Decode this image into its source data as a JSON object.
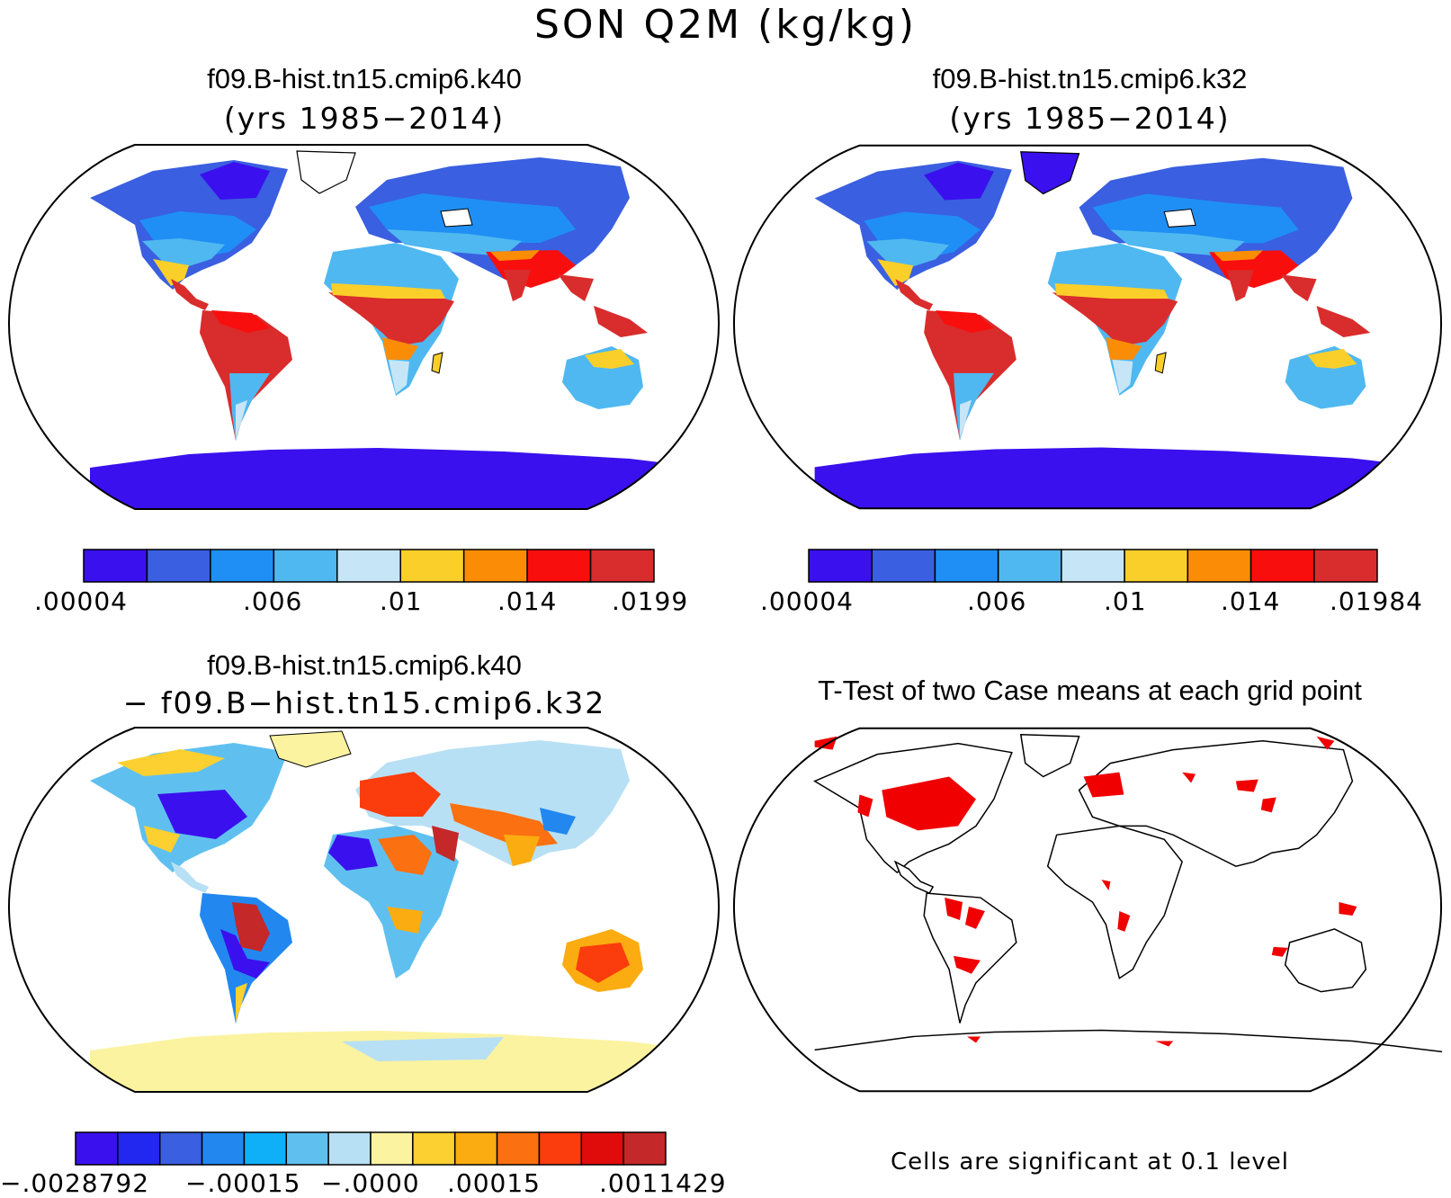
{
  "figure": {
    "title": "SON Q2M (kg/kg)"
  },
  "panels": [
    {
      "id": "case1",
      "title": "f09.B-hist.tn15.cmip6.k40",
      "subtitle": "(yrs 1985−2014)",
      "colorbar": {
        "colors": [
          "#3a10ee",
          "#3a5fe0",
          "#1f8ff5",
          "#4fb8f0",
          "#c6e6f7",
          "#fbcf2a",
          "#fb8c05",
          "#f90e0e",
          "#d92c2c"
        ],
        "labels": [
          ".00004",
          ".006",
          ".01",
          ".014",
          ".0199"
        ]
      }
    },
    {
      "id": "case2",
      "title": "f09.B-hist.tn15.cmip6.k32",
      "subtitle": "(yrs 1985−2014)",
      "colorbar": {
        "colors": [
          "#3a10ee",
          "#3a5fe0",
          "#1f8ff5",
          "#4fb8f0",
          "#c6e6f7",
          "#fbcf2a",
          "#fb8c05",
          "#f90e0e",
          "#d92c2c"
        ],
        "labels": [
          ".00004",
          ".006",
          ".01",
          ".014",
          ".01984"
        ]
      }
    },
    {
      "id": "diff",
      "title": "f09.B-hist.tn15.cmip6.k40",
      "subtitle": "− f09.B−hist.tn15.cmip6.k32",
      "colorbar": {
        "colors": [
          "#3a10ee",
          "#2228f0",
          "#3a5fe0",
          "#2288f0",
          "#10b0f8",
          "#5fc0f0",
          "#b8e0f4",
          "#fbf3a0",
          "#fbd030",
          "#fbac10",
          "#fb7010",
          "#fb3c0c",
          "#e00c0c",
          "#c42828"
        ],
        "labels": [
          "−.0028792",
          "−.00015",
          "−.0000",
          ".00015",
          ".0011429"
        ]
      }
    },
    {
      "id": "ttest",
      "title": "T-Test of two Case means at each grid point",
      "note": "Cells are significant at 0.1 level",
      "significance_color": "#f00000"
    }
  ]
}
